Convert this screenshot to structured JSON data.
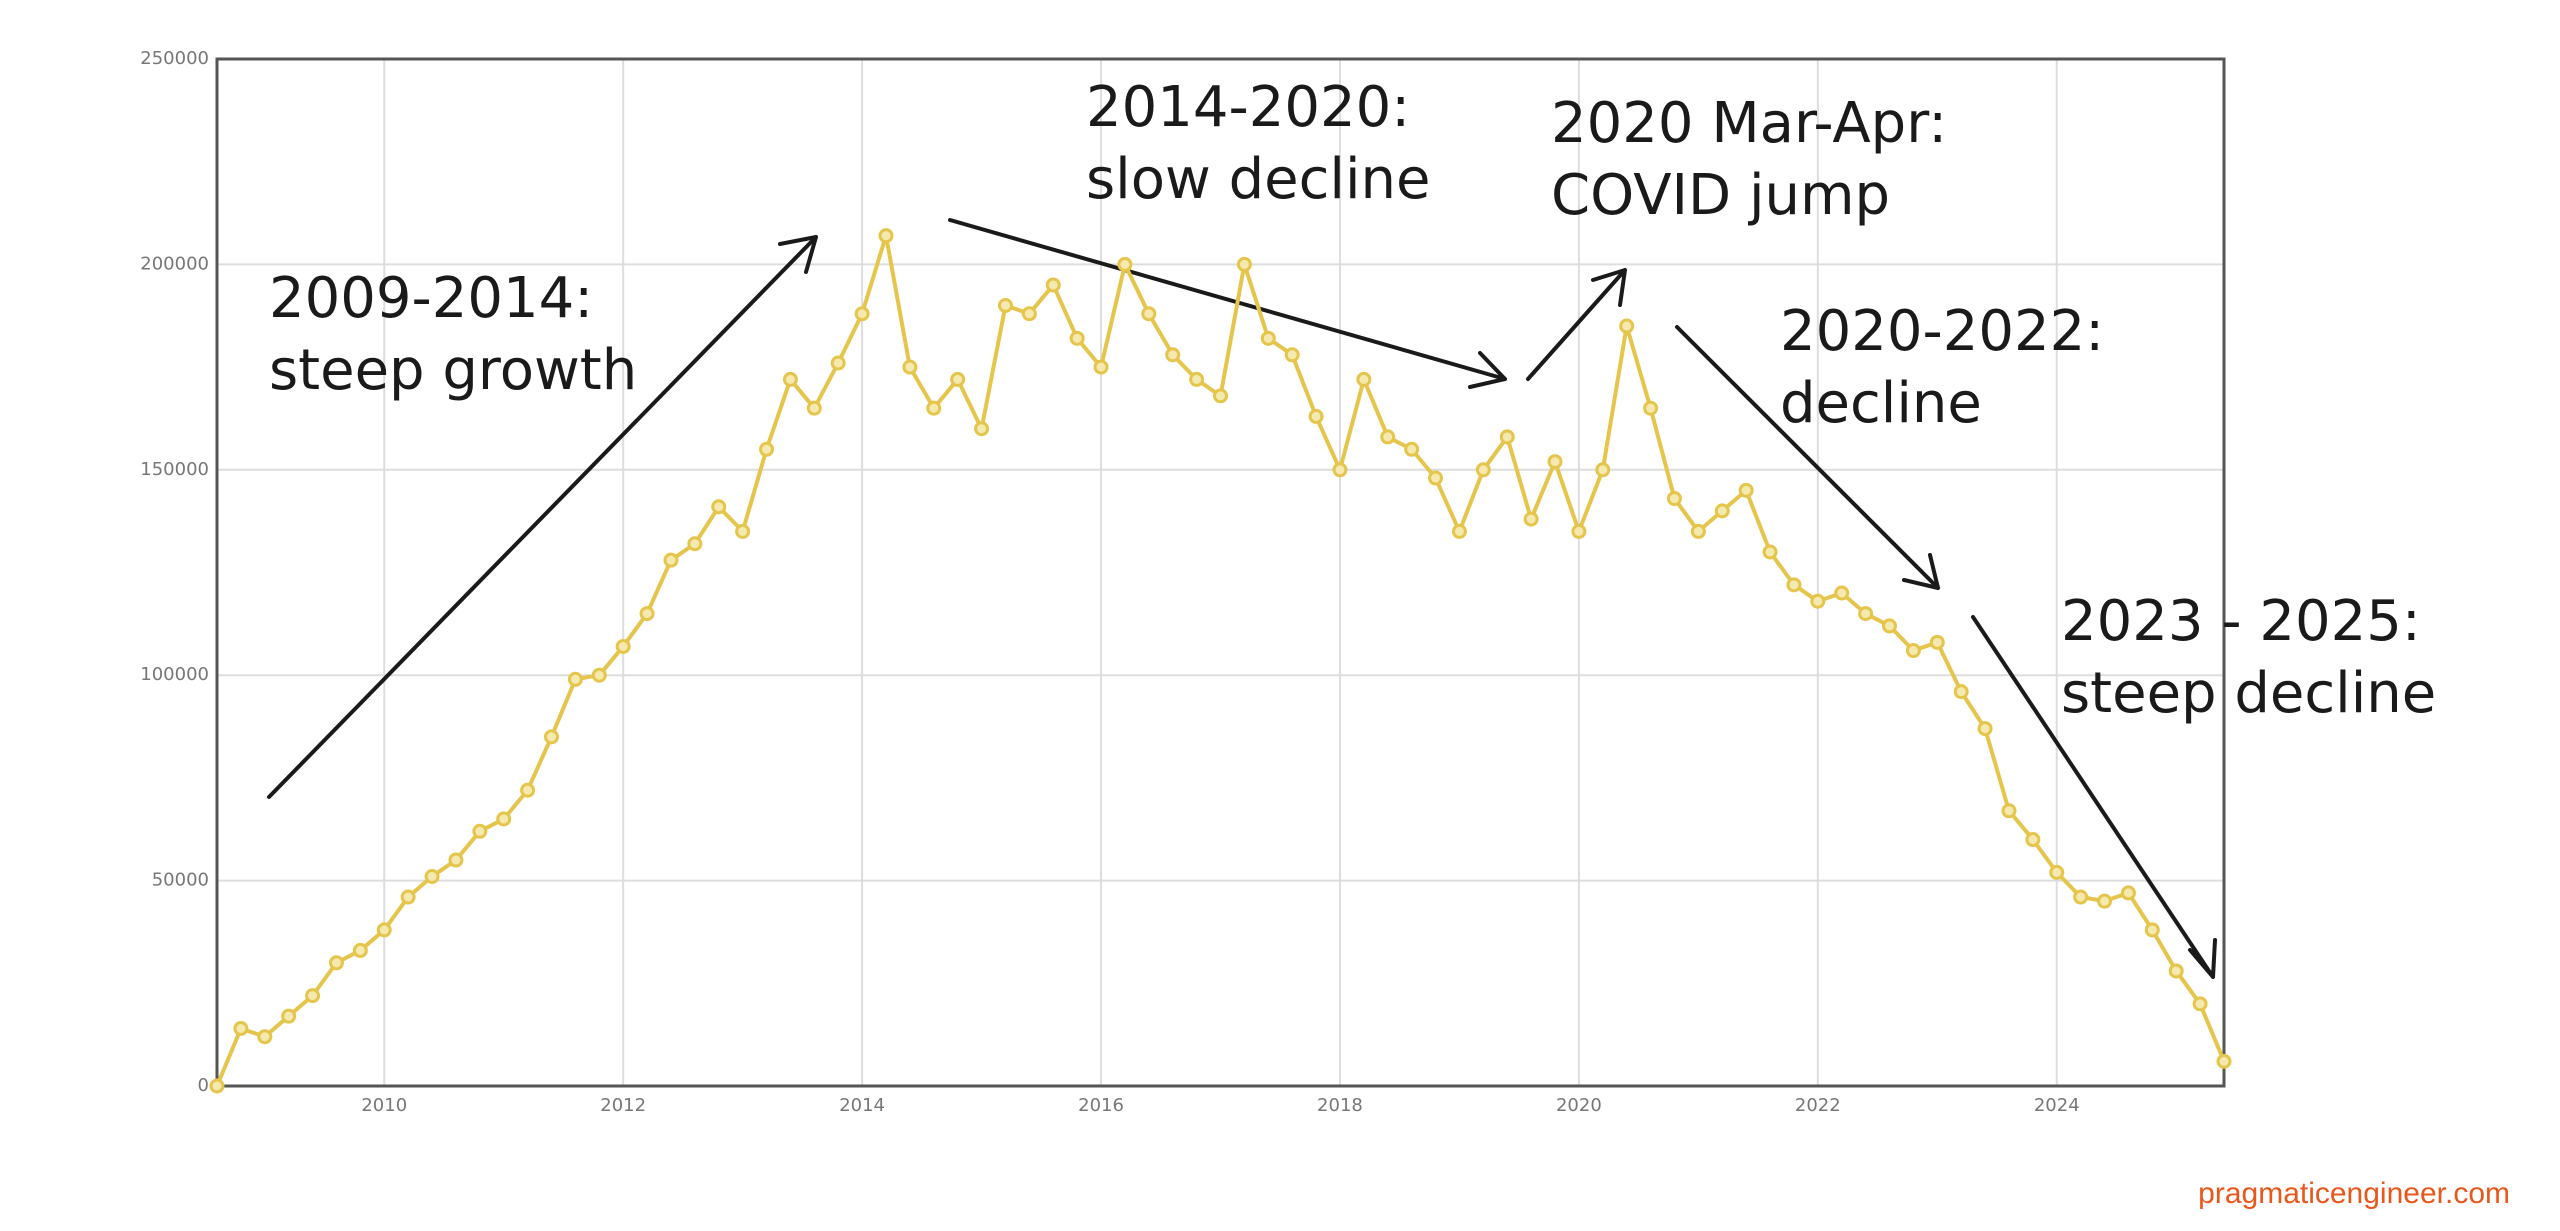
{
  "chart_data": {
    "type": "line",
    "x": [
      2008.6,
      2008.8,
      2009.0,
      2009.2,
      2009.4,
      2009.6,
      2009.8,
      2010.0,
      2010.2,
      2010.4,
      2010.6,
      2010.8,
      2011.0,
      2011.2,
      2011.4,
      2011.6,
      2011.8,
      2012.0,
      2012.2,
      2012.4,
      2012.6,
      2012.8,
      2013.0,
      2013.2,
      2013.4,
      2013.6,
      2013.8,
      2014.0,
      2014.2,
      2014.4,
      2014.6,
      2014.8,
      2015.0,
      2015.2,
      2015.4,
      2015.6,
      2015.8,
      2016.0,
      2016.2,
      2016.4,
      2016.6,
      2016.8,
      2017.0,
      2017.2,
      2017.4,
      2017.6,
      2017.8,
      2018.0,
      2018.2,
      2018.4,
      2018.6,
      2018.8,
      2019.0,
      2019.2,
      2019.4,
      2019.6,
      2019.8,
      2020.0,
      2020.2,
      2020.4,
      2020.6,
      2020.8,
      2021.0,
      2021.2,
      2021.4,
      2021.6,
      2021.8,
      2022.0,
      2022.2,
      2022.4,
      2022.6,
      2022.8,
      2023.0,
      2023.2,
      2023.4,
      2023.6,
      2023.8,
      2024.0,
      2024.2,
      2024.4,
      2024.6,
      2024.8,
      2025.0,
      2025.2,
      2025.4
    ],
    "series": [
      {
        "color": "#e6c54c",
        "values": [
          0,
          14000,
          12000,
          17000,
          22000,
          30000,
          33000,
          38000,
          46000,
          51000,
          55000,
          62000,
          65000,
          72000,
          85000,
          99000,
          100000,
          107000,
          115000,
          128000,
          132000,
          141000,
          135000,
          155000,
          172000,
          165000,
          176000,
          188000,
          207000,
          175000,
          165000,
          172000,
          160000,
          190000,
          188000,
          195000,
          182000,
          175000,
          200000,
          188000,
          178000,
          172000,
          168000,
          200000,
          182000,
          178000,
          163000,
          150000,
          172000,
          158000,
          155000,
          148000,
          135000,
          150000,
          158000,
          138000,
          152000,
          135000,
          150000,
          185000,
          165000,
          143000,
          135000,
          140000,
          145000,
          130000,
          122000,
          118000,
          120000,
          115000,
          112000,
          106000,
          108000,
          96000,
          87000,
          67000,
          60000,
          52000,
          46000,
          45000,
          47000,
          38000,
          28000,
          20000,
          6000
        ]
      }
    ],
    "xlim": [
      2008.6,
      2025.4
    ],
    "xticks": [
      2010,
      2012,
      2014,
      2016,
      2018,
      2020,
      2022,
      2024
    ],
    "ylim": [
      0,
      250000
    ],
    "yticks": [
      0,
      50000,
      100000,
      150000,
      200000,
      250000
    ],
    "grid": true,
    "annotations": [
      [
        "2009-2014:",
        "steep growth"
      ],
      [
        "2014-2020:",
        "slow decline"
      ],
      [
        "2020 Mar-Apr:",
        "COVID jump"
      ],
      [
        "2020-2022:",
        "decline"
      ],
      [
        "2023 - 2025:",
        "steep decline"
      ]
    ]
  },
  "footer": "pragmaticengineer.com"
}
